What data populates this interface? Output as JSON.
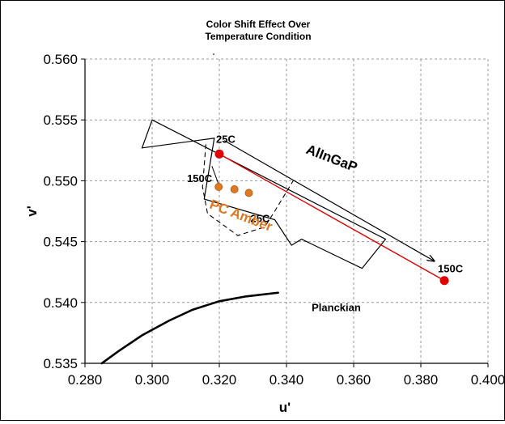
{
  "chart_data": {
    "type": "scatter",
    "title_lines": [
      "Color Shift  Effect Over",
      "Temperature Condition"
    ],
    "xlabel": "u'",
    "ylabel": "v'",
    "xlim": [
      0.28,
      0.4
    ],
    "ylim": [
      0.535,
      0.56
    ],
    "x_ticks": [
      "0.280",
      "0.300",
      "0.320",
      "0.340",
      "0.360",
      "0.380",
      "0.400"
    ],
    "y_ticks": [
      "0.535",
      "0.540",
      "0.545",
      "0.550",
      "0.555",
      "0.560"
    ],
    "grid": true,
    "series": [
      {
        "name": "AlInGaP",
        "color": "#e00000",
        "points": [
          {
            "label": "25C",
            "u": 0.32,
            "v": 0.5522
          },
          {
            "label": "150C",
            "u": 0.387,
            "v": 0.5418
          }
        ]
      },
      {
        "name": "PC Amber",
        "color": "#e07820",
        "points": [
          {
            "label": "150C",
            "u": 0.3198,
            "v": 0.5495
          },
          {
            "label": "",
            "u": 0.3245,
            "v": 0.5493
          },
          {
            "label": "25C",
            "u": 0.3288,
            "v": 0.549
          }
        ]
      }
    ],
    "planckian": {
      "label": "Planckian",
      "points": [
        [
          0.285,
          0.535
        ],
        [
          0.29,
          0.536
        ],
        [
          0.297,
          0.5373
        ],
        [
          0.305,
          0.5385
        ],
        [
          0.312,
          0.5394
        ],
        [
          0.32,
          0.5401
        ],
        [
          0.328,
          0.5405
        ],
        [
          0.3375,
          0.5408
        ]
      ]
    },
    "region_outline": [
      [
        0.3,
        0.555
      ],
      [
        0.3695,
        0.5452
      ],
      [
        0.3625,
        0.5428
      ],
      [
        0.3445,
        0.5452
      ],
      [
        0.3415,
        0.5447
      ],
      [
        0.3365,
        0.5468
      ],
      [
        0.3155,
        0.5485
      ],
      [
        0.3185,
        0.5535
      ],
      [
        0.297,
        0.5527
      ],
      [
        0.3,
        0.555
      ]
    ],
    "annotations": {
      "series_label": "AlInGaP",
      "pc_label": "PC Amber",
      "planck_label": "Planckian"
    }
  }
}
